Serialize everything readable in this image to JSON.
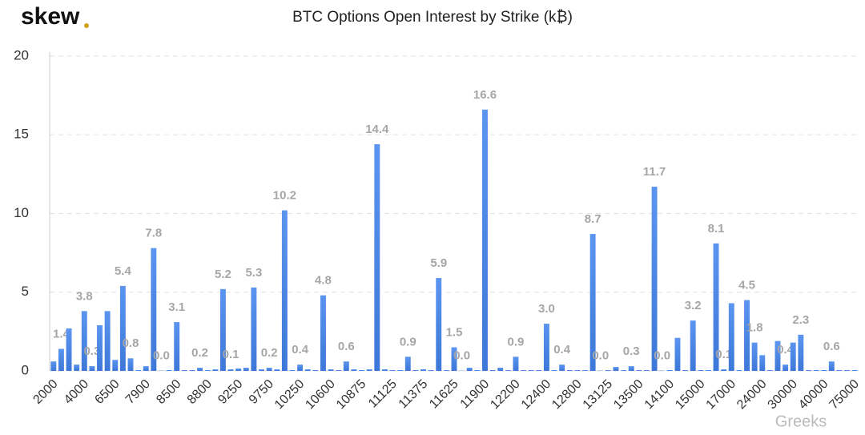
{
  "logo": "skew",
  "watermark": "Greeks",
  "chart_data": {
    "type": "bar",
    "title": "BTC Options Open Interest by Strike (k₿)",
    "categories": [
      "2000",
      null,
      null,
      null,
      "4000",
      null,
      null,
      null,
      "6500",
      null,
      null,
      null,
      "7900",
      null,
      null,
      null,
      "8500",
      null,
      null,
      null,
      "8800",
      null,
      null,
      null,
      "9250",
      null,
      null,
      null,
      "9750",
      null,
      null,
      null,
      "10250",
      null,
      null,
      null,
      "10600",
      null,
      null,
      null,
      "10875",
      null,
      null,
      null,
      "11125",
      null,
      null,
      null,
      "11375",
      null,
      null,
      null,
      "11625",
      null,
      null,
      null,
      "11900",
      null,
      null,
      null,
      "12200",
      null,
      null,
      null,
      "12400",
      null,
      null,
      null,
      "12800",
      null,
      null,
      null,
      "13125",
      null,
      null,
      null,
      "13500",
      null,
      null,
      null,
      "14100",
      null,
      null,
      null,
      "15000",
      null,
      null,
      null,
      "17000",
      null,
      null,
      null,
      "24000",
      null,
      null,
      null,
      "30000",
      null,
      null,
      null,
      "40000",
      null,
      null,
      null,
      "75000"
    ],
    "values": [
      0.6,
      1.4,
      2.7,
      0.4,
      3.8,
      0.3,
      2.9,
      3.8,
      0.7,
      5.4,
      0.8,
      0.05,
      0.3,
      7.8,
      0.02,
      0.05,
      3.1,
      0.05,
      0.05,
      0.2,
      0.05,
      0.1,
      5.2,
      0.1,
      0.15,
      0.2,
      5.3,
      0.1,
      0.2,
      0.1,
      10.2,
      0.05,
      0.4,
      0.1,
      0.05,
      4.8,
      0.1,
      0.05,
      0.6,
      0.1,
      0.05,
      0.1,
      14.4,
      0.1,
      0.05,
      0.05,
      0.9,
      0.05,
      0.1,
      0.05,
      5.9,
      0.05,
      1.5,
      0.02,
      0.2,
      0.05,
      16.6,
      0.05,
      0.2,
      0.05,
      0.9,
      0.05,
      0.05,
      0.05,
      3.0,
      0.05,
      0.4,
      0.05,
      0.05,
      0.05,
      8.7,
      0.02,
      0.05,
      0.25,
      0.05,
      0.3,
      0.05,
      0.05,
      11.7,
      0.02,
      0.05,
      2.1,
      0.05,
      3.2,
      0.05,
      0.05,
      8.1,
      0.1,
      4.3,
      0.05,
      4.5,
      1.8,
      1.0,
      0.05,
      1.9,
      0.4,
      1.8,
      2.3,
      0.05,
      0.05,
      0.05,
      0.6,
      0.05,
      0.05,
      0.05
    ],
    "value_labels": [
      null,
      "1.4",
      null,
      null,
      "3.8",
      "0.3",
      null,
      null,
      null,
      "5.4",
      "0.8",
      null,
      null,
      "7.8",
      "0.0",
      null,
      "3.1",
      null,
      null,
      "0.2",
      null,
      null,
      "5.2",
      "0.1",
      null,
      null,
      "5.3",
      null,
      "0.2",
      null,
      "10.2",
      null,
      "0.4",
      null,
      null,
      "4.8",
      null,
      null,
      "0.6",
      null,
      null,
      null,
      "14.4",
      null,
      null,
      null,
      "0.9",
      null,
      null,
      null,
      "5.9",
      null,
      "1.5",
      "0.0",
      null,
      null,
      "16.6",
      null,
      null,
      null,
      "0.9",
      null,
      null,
      null,
      "3.0",
      null,
      "0.4",
      null,
      null,
      null,
      "8.7",
      "0.0",
      null,
      null,
      null,
      "0.3",
      null,
      null,
      "11.7",
      "0.0",
      null,
      null,
      null,
      "3.2",
      null,
      null,
      "8.1",
      "0.1",
      null,
      null,
      "4.5",
      "1.8",
      null,
      null,
      null,
      "0.4",
      null,
      "2.3",
      null,
      null,
      null,
      "0.6",
      null,
      null,
      null
    ],
    "color": "#4a86e8",
    "ylim": [
      0,
      20
    ],
    "yticks": [
      0,
      5,
      10,
      15,
      20
    ],
    "grid": true
  }
}
